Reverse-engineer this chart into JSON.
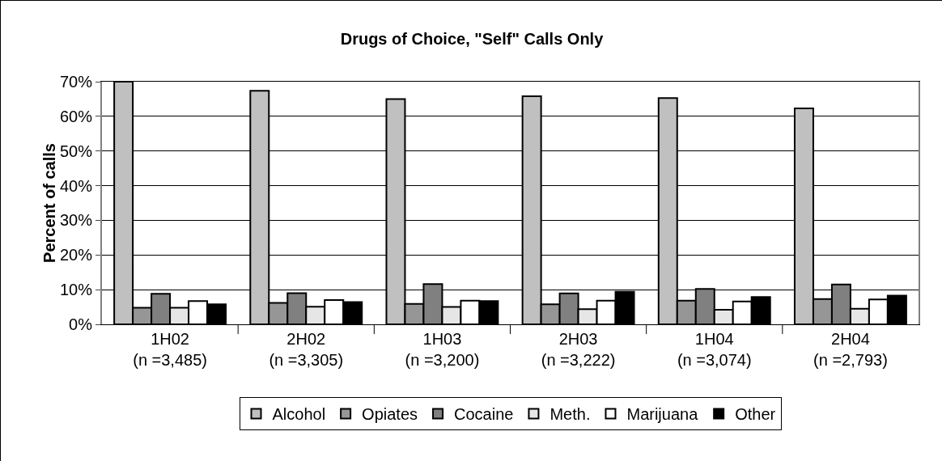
{
  "chart_data": {
    "type": "bar",
    "title": "Drugs of Choice, \"Self\" Calls Only",
    "ylabel": "Percent of calls",
    "categories": [
      "1H02\n(n =3,485)",
      "2H02\n(n =3,305)",
      "1H03\n(n =3,200)",
      "2H03\n(n =3,222)",
      "1H04\n(n =3,074)",
      "2H04\n(n =2,793)"
    ],
    "series": [
      {
        "name": "Alcohol",
        "color": "#c0c0c0",
        "values": [
          70,
          67.4,
          65,
          65.8,
          65.3,
          62.3
        ]
      },
      {
        "name": "Opiates",
        "color": "#969696",
        "values": [
          4.8,
          6.2,
          5.9,
          5.8,
          6.8,
          7.3
        ]
      },
      {
        "name": "Cocaine",
        "color": "#808080",
        "values": [
          8.8,
          9.0,
          11.6,
          8.9,
          10.2,
          11.5
        ]
      },
      {
        "name": "Meth.",
        "color": "#e6e6e6",
        "values": [
          4.8,
          5.1,
          5.0,
          4.4,
          4.2,
          4.5
        ]
      },
      {
        "name": "Marijuana",
        "color": "#ffffff",
        "values": [
          6.7,
          7.0,
          6.8,
          6.8,
          6.6,
          7.2
        ]
      },
      {
        "name": "Other",
        "color": "#000000",
        "values": [
          5.8,
          6.4,
          6.7,
          9.4,
          7.9,
          8.3
        ]
      }
    ],
    "ylim": [
      0,
      70
    ],
    "yticks": [
      {
        "value": 0,
        "label": "0%"
      },
      {
        "value": 10,
        "label": "10%"
      },
      {
        "value": 20,
        "label": "20%"
      },
      {
        "value": 30,
        "label": "30%"
      },
      {
        "value": 40,
        "label": "40%"
      },
      {
        "value": 50,
        "label": "50%"
      },
      {
        "value": 60,
        "label": "60%"
      },
      {
        "value": 70,
        "label": "70%"
      }
    ],
    "grid": "y",
    "legend": "bottom"
  }
}
